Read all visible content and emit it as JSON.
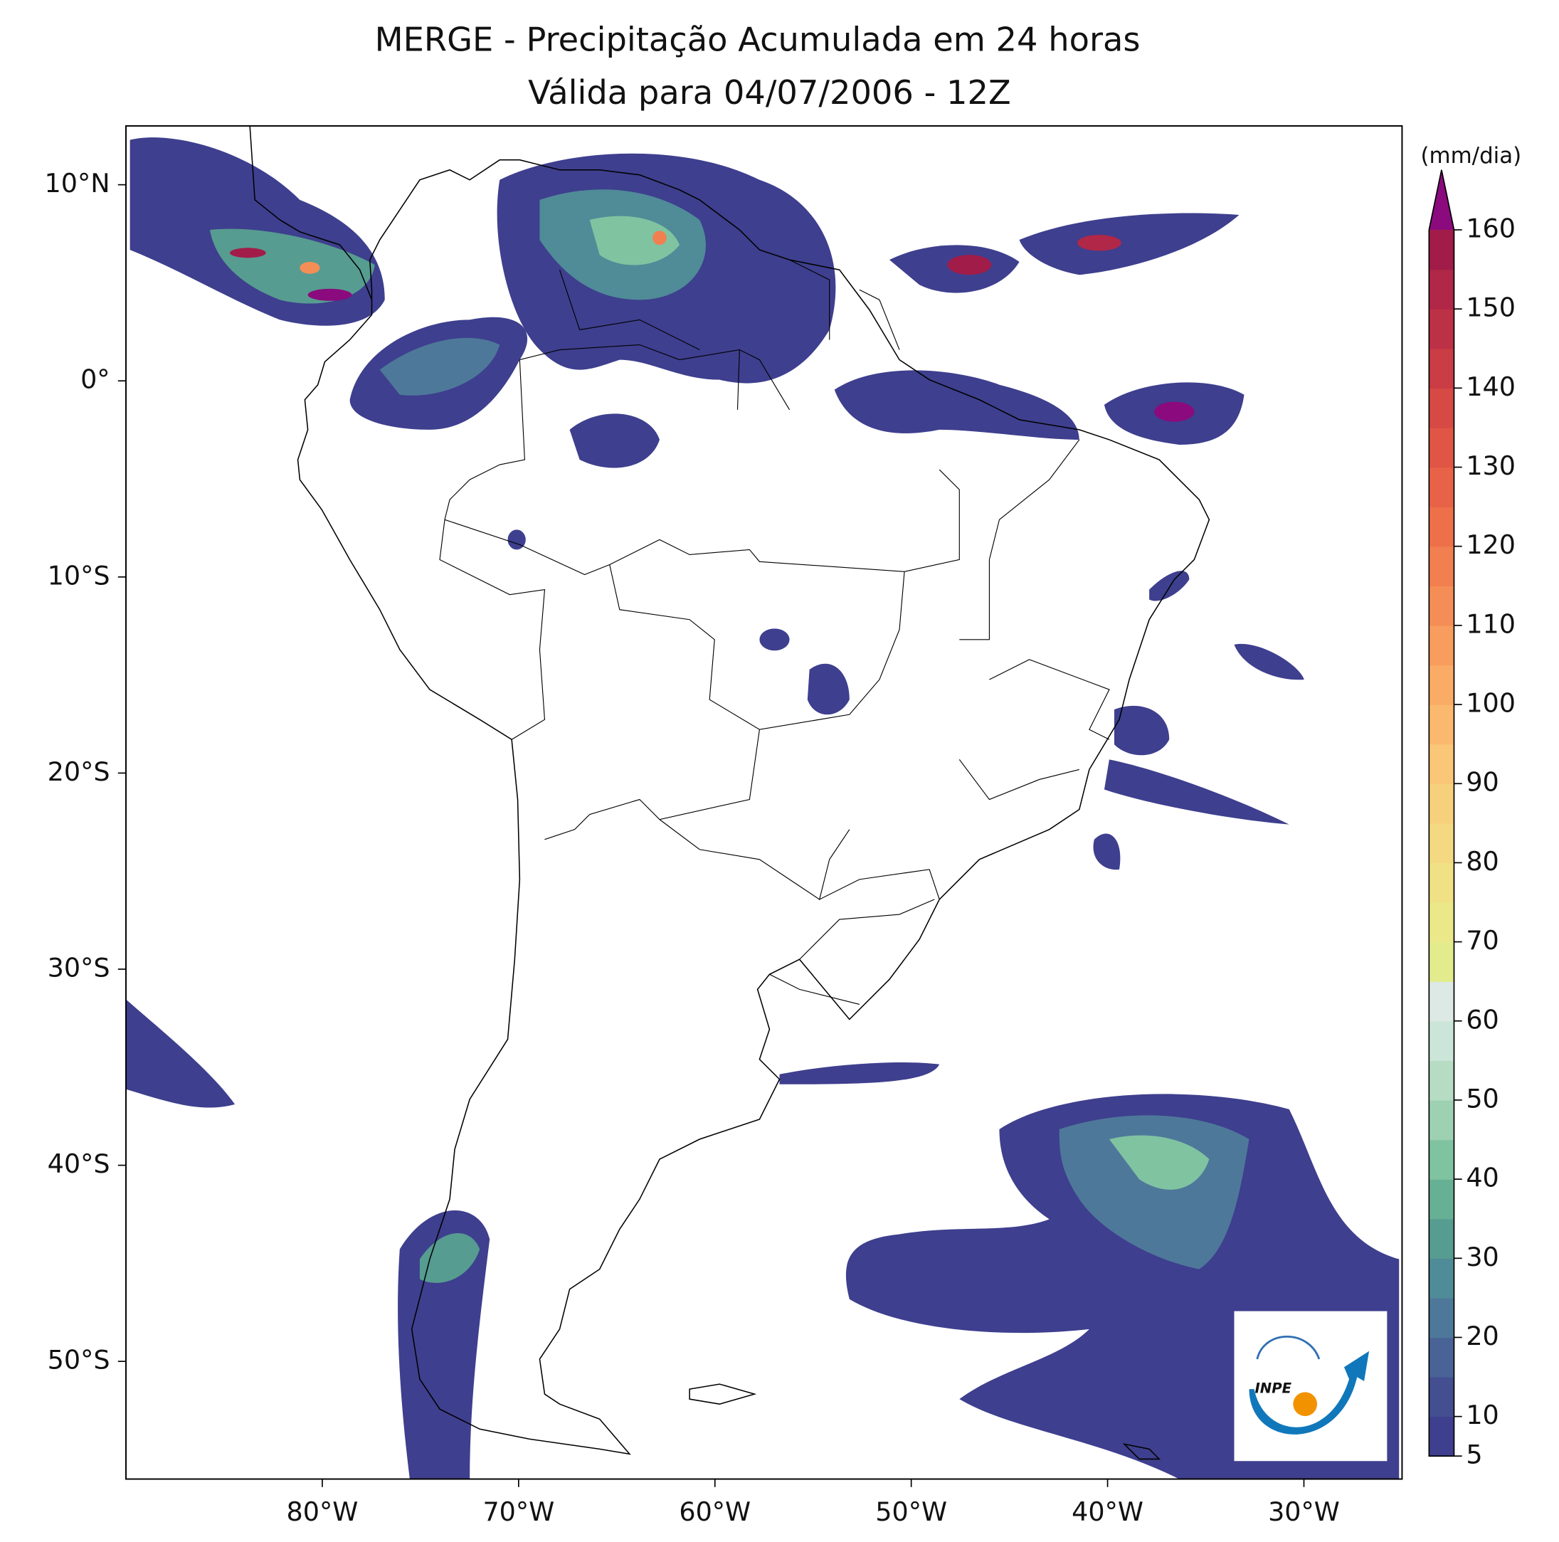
{
  "title": [
    "MERGE - Precipitação Acumulada em 24 horas",
    "Válida para 04/07/2006 - 12Z"
  ],
  "map": {
    "lonlim": [
      -90,
      -25
    ],
    "latlim": [
      -56,
      13
    ],
    "lon_ticks": [
      {
        "value": -80,
        "label": "80°W"
      },
      {
        "value": -70,
        "label": "70°W"
      },
      {
        "value": -60,
        "label": "60°W"
      },
      {
        "value": -50,
        "label": "50°W"
      },
      {
        "value": -40,
        "label": "40°W"
      },
      {
        "value": -30,
        "label": "30°W"
      }
    ],
    "lat_ticks": [
      {
        "value": 10,
        "label": "10°N"
      },
      {
        "value": 0,
        "label": "0°"
      },
      {
        "value": -10,
        "label": "10°S"
      },
      {
        "value": -20,
        "label": "20°S"
      },
      {
        "value": -30,
        "label": "30°S"
      },
      {
        "value": -40,
        "label": "40°S"
      },
      {
        "value": -50,
        "label": "50°S"
      }
    ]
  },
  "colorbar": {
    "label": "(mm/dia)",
    "lim": [
      5,
      160
    ],
    "ticks": [
      5,
      10,
      20,
      30,
      40,
      50,
      60,
      70,
      80,
      90,
      100,
      110,
      120,
      130,
      140,
      150,
      160
    ],
    "colors": [
      "#3e3f8e",
      "#434f91",
      "#4a6396",
      "#4e789a",
      "#508b98",
      "#569c90",
      "#66b195",
      "#80c3a1",
      "#9dd1b1",
      "#b6dcc4",
      "#cbe5d9",
      "#dce9e5",
      "#e3ec8c",
      "#ebe889",
      "#f0e184",
      "#f4d982",
      "#f7d07c",
      "#fac677",
      "#fbb96f",
      "#faab66",
      "#f89d5d",
      "#f58e56",
      "#f27f50",
      "#ee704b",
      "#e86247",
      "#e05545",
      "#d64944",
      "#ca3d45",
      "#bd3146",
      "#b02747",
      "#a21c49"
    ],
    "extend_color": "#8b0a7d"
  },
  "logo": {
    "text": "INPE"
  }
}
